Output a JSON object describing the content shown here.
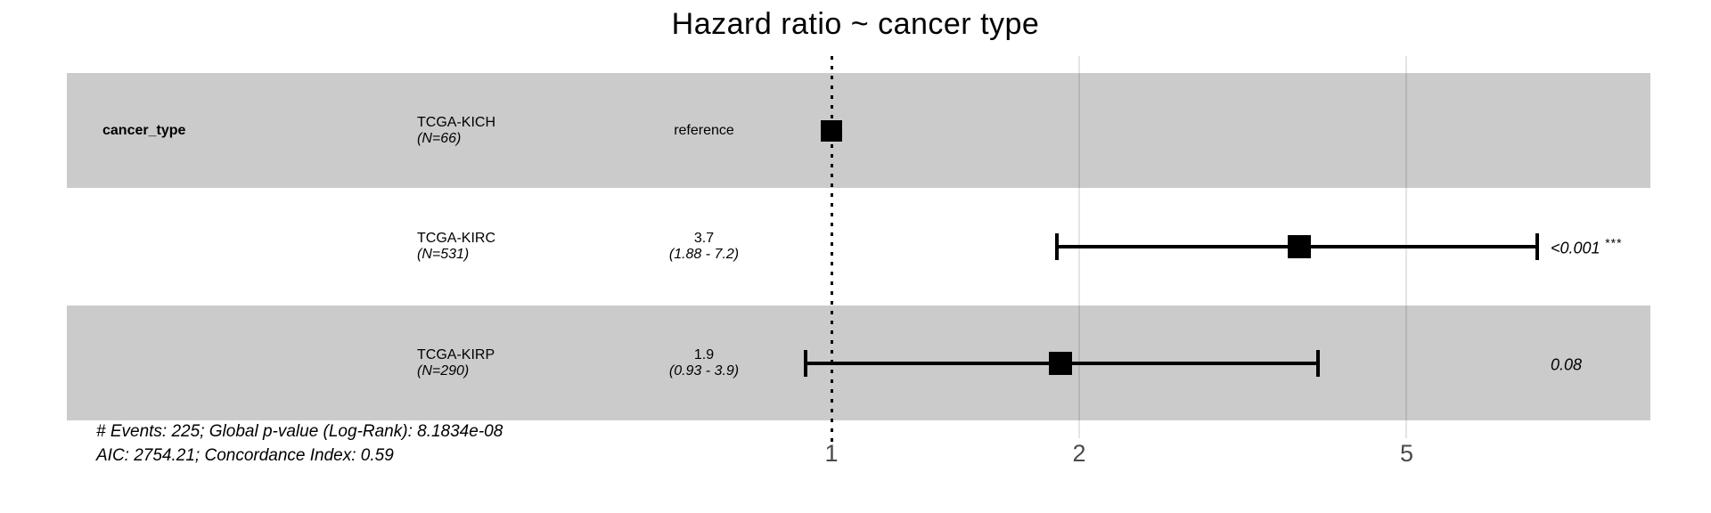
{
  "chart_data": {
    "type": "forest",
    "title": "Hazard ratio ~ cancer type",
    "term_label": "cancer_type",
    "rows": [
      {
        "level": "TCGA-KICH",
        "n_label": "(N=66)",
        "estimate_label": "reference",
        "ci_label": "",
        "p_label": "",
        "sig_label": "",
        "hr": 1.0,
        "ci_low": null,
        "ci_high": null,
        "is_reference": true,
        "shaded": true
      },
      {
        "level": "TCGA-KIRC",
        "n_label": "(N=531)",
        "estimate_label": "3.7",
        "ci_label": "(1.88 - 7.2)",
        "p_label": "<0.001",
        "sig_label": "***",
        "hr": 3.7,
        "ci_low": 1.88,
        "ci_high": 7.2,
        "is_reference": false,
        "shaded": false
      },
      {
        "level": "TCGA-KIRP",
        "n_label": "(N=290)",
        "estimate_label": "1.9",
        "ci_label": "(0.93 - 3.9)",
        "p_label": "0.08",
        "sig_label": "",
        "hr": 1.9,
        "ci_low": 0.93,
        "ci_high": 3.9,
        "is_reference": false,
        "shaded": true
      }
    ],
    "axis": {
      "scale": "log10",
      "ticks": [
        1,
        2,
        5
      ],
      "reference_line": 1,
      "range_hint": [
        0.9,
        8
      ]
    },
    "footer_lines": [
      "# Events: 225; Global p-value (Log-Rank): 8.1834e-08",
      "AIC: 2754.21; Concordance Index: 0.59"
    ],
    "colors": {
      "band": "#cbcbcb",
      "marker": "#000000",
      "gridline_overlay": "rgba(0,0,0,0.10)",
      "tick_text": "#4a4a4a"
    }
  }
}
